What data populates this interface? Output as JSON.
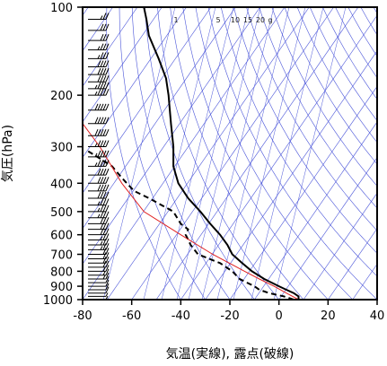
{
  "chart_data": {
    "type": "line",
    "xlabel": "気温(実線), 露点(破線)",
    "ylabel": "気圧(hPa)",
    "xlim": [
      -80,
      40
    ],
    "ylim_hpa": [
      1000,
      100
    ],
    "y_scale": "log",
    "x_ticks": [
      -80,
      -60,
      -40,
      -20,
      0,
      20,
      40
    ],
    "x_tick_labels": [
      "-80",
      "-60",
      "-40",
      "-20",
      "0",
      "20",
      "40"
    ],
    "y_ticks": [
      100,
      200,
      300,
      400,
      500,
      600,
      700,
      800,
      900,
      1000
    ],
    "y_tick_labels": [
      "100",
      "200",
      "300",
      "400",
      "500",
      "600",
      "700",
      "800",
      "900",
      "1000"
    ],
    "mixing_ratio_labels": [
      "1",
      "5",
      "10",
      "15",
      "20",
      "g"
    ],
    "background_lines": {
      "dry_adiabats": true,
      "isotherms_skewed": true,
      "mixing_ratio_lines": true,
      "color": "#4a55d9"
    },
    "colors": {
      "temperature": "#000000",
      "dewpoint": "#000000",
      "parcel": "#e02020",
      "background": "#4a55d9",
      "frame": "#000000"
    },
    "series": [
      {
        "style": "solid",
        "pressure": [
          1000,
          975,
          950,
          925,
          900,
          850,
          800,
          750,
          700,
          650,
          600,
          550,
          500,
          450,
          400,
          350,
          300,
          250,
          200,
          175,
          150,
          125,
          110,
          100
        ],
        "values": [
          8,
          8,
          6,
          3,
          0,
          -6,
          -11,
          -15,
          -19,
          -21,
          -24,
          -28,
          -32,
          -37,
          -41,
          -43,
          -43,
          -44,
          -45,
          -46,
          -49,
          -53,
          -54,
          -55
        ]
      },
      {
        "style": "dashed",
        "pressure": [
          1000,
          975,
          950,
          925,
          900,
          875,
          850,
          800,
          750,
          700,
          650,
          600,
          575,
          550,
          500,
          450,
          425,
          400,
          375,
          350,
          325,
          310
        ],
        "values": [
          6,
          2,
          -4,
          -8,
          -10,
          -13,
          -16,
          -19,
          -24,
          -33,
          -36,
          -38,
          -37,
          -40,
          -43,
          -53,
          -59,
          -62,
          -65,
          -68,
          -74,
          -78
        ]
      },
      {
        "style": "parcel",
        "pressure": [
          1000,
          950,
          900,
          850,
          800,
          700,
          600,
          500,
          400,
          300,
          250
        ],
        "values": [
          8,
          3,
          -2,
          -8,
          -14,
          -27,
          -40,
          -55,
          -64,
          -73,
          -80
        ]
      }
    ],
    "wind_barbs": {
      "position": "left-inside",
      "pressure": [
        1000,
        975,
        950,
        925,
        900,
        875,
        850,
        825,
        800,
        775,
        750,
        725,
        700,
        675,
        650,
        625,
        600,
        575,
        550,
        525,
        500,
        475,
        450,
        425,
        400,
        375,
        350,
        325,
        300,
        275,
        250,
        225,
        200,
        190,
        180,
        170,
        160,
        150,
        140,
        130,
        120,
        110,
        100
      ],
      "speed_kt": [
        5,
        5,
        10,
        10,
        10,
        10,
        15,
        15,
        15,
        20,
        20,
        20,
        20,
        25,
        25,
        25,
        30,
        30,
        30,
        35,
        35,
        35,
        40,
        40,
        40,
        40,
        45,
        45,
        45,
        50,
        50,
        50,
        45,
        45,
        40,
        40,
        40,
        35,
        35,
        30,
        30,
        25,
        25
      ]
    }
  }
}
